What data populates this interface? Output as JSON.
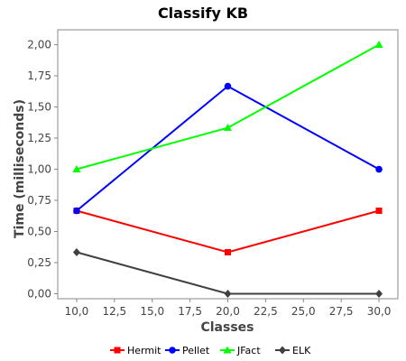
{
  "chart_data": {
    "type": "line",
    "title": "Classify KB",
    "xlabel": "Classes",
    "ylabel": "Time (milliseconds)",
    "xlim": [
      8.75,
      31.25
    ],
    "ylim": [
      -0.04,
      2.12
    ],
    "x_ticks": [
      10,
      12.5,
      15,
      17.5,
      20,
      22.5,
      25,
      27.5,
      30
    ],
    "x_tick_labels": [
      "10,0",
      "12,5",
      "15,0",
      "17,5",
      "20,0",
      "22,5",
      "25,0",
      "27,5",
      "30,0"
    ],
    "y_ticks": [
      0,
      0.25,
      0.5,
      0.75,
      1.0,
      1.25,
      1.5,
      1.75,
      2.0
    ],
    "y_tick_labels": [
      "0,00",
      "0,25",
      "0,50",
      "0,75",
      "1,00",
      "1,25",
      "1,50",
      "1,75",
      "2,00"
    ],
    "grid": false,
    "legend_position": "bottom",
    "x": [
      10,
      20,
      30
    ],
    "series": [
      {
        "name": "Hermit",
        "values": [
          0.6667,
          0.3333,
          0.6667
        ],
        "color": "#ff0000",
        "marker": "square"
      },
      {
        "name": "Pellet",
        "values": [
          0.6667,
          1.6667,
          1.0
        ],
        "color": "#0000ff",
        "marker": "circle"
      },
      {
        "name": "JFact",
        "values": [
          1.0,
          1.3333,
          2.0
        ],
        "color": "#00ff00",
        "marker": "triangle"
      },
      {
        "name": "ELK",
        "values": [
          0.3333,
          0.0,
          0.0
        ],
        "color": "#404040",
        "marker": "diamond"
      }
    ]
  }
}
